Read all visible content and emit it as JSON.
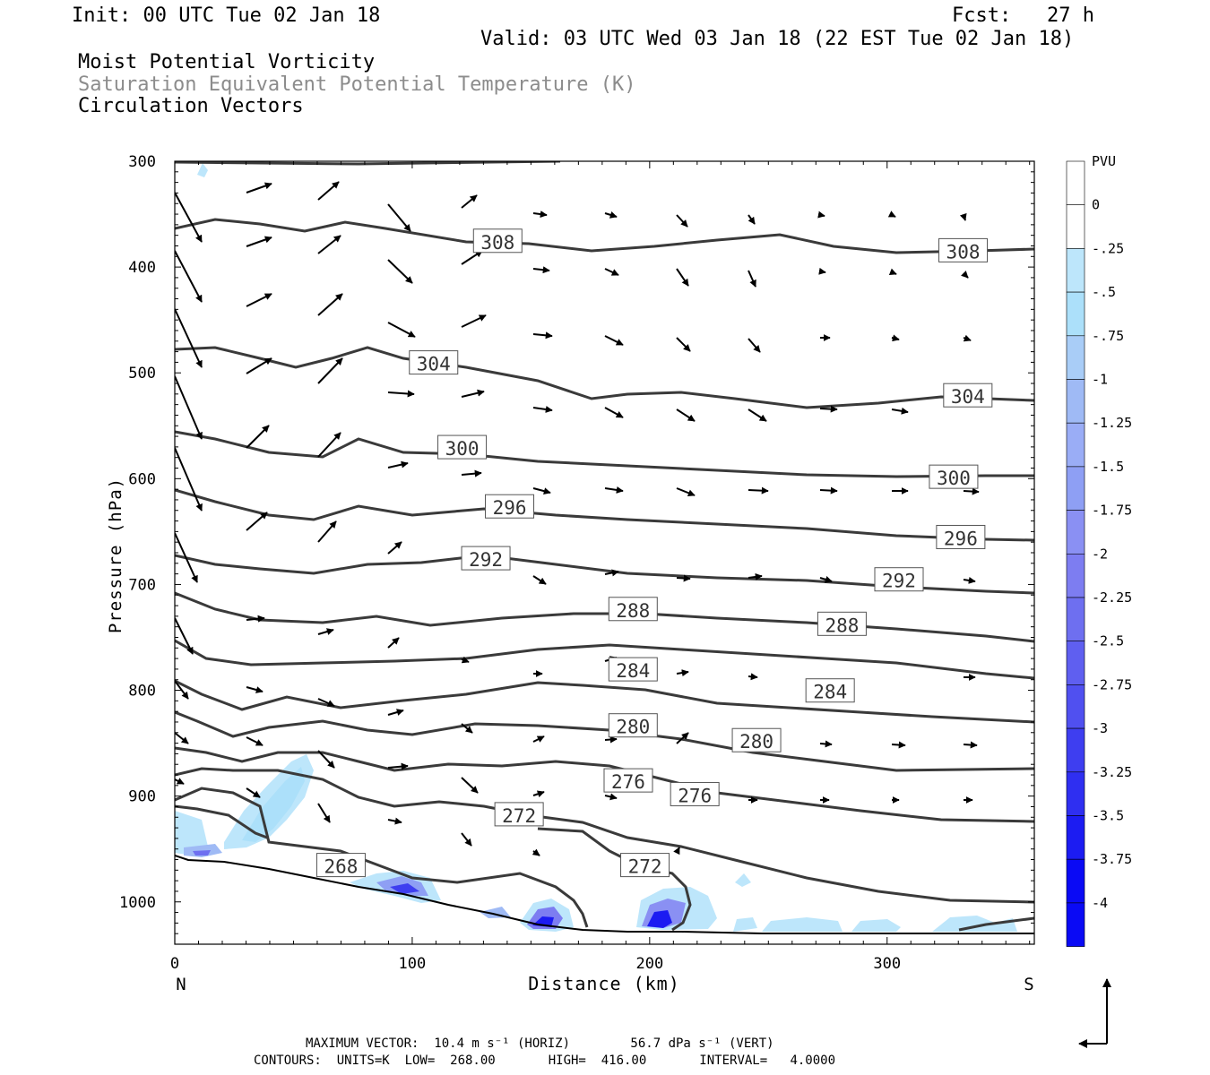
{
  "header": {
    "init": "Init: 00 UTC Tue 02 Jan 18",
    "fcst": "Fcst:   27 h",
    "valid": "Valid: 03 UTC Wed 03 Jan 18 (22 EST Tue 02 Jan 18)",
    "field1": "Moist Potential Vorticity",
    "field2": "Saturation Equivalent Potential Temperature (K)",
    "field3": "Circulation Vectors"
  },
  "footer": {
    "line1": "MAXIMUM VECTOR:  10.4 m s⁻¹ (HORIZ)        56.7 dPa s⁻¹ (VERT)",
    "line2": "CONTOURS:  UNITS=K  LOW=  268.00       HIGH=  416.00       INTERVAL=   4.0000"
  },
  "chart_data": {
    "type": "contour",
    "xlabel": "Distance (km)",
    "ylabel": "Pressure (hPa)",
    "x_ends": [
      "N",
      "S"
    ],
    "xlim": [
      0,
      362
    ],
    "ylim": [
      1040,
      300
    ],
    "x_ticks": [
      0,
      100,
      200,
      300
    ],
    "y_ticks": [
      300,
      400,
      500,
      600,
      700,
      800,
      900,
      1000
    ],
    "colorbar": {
      "unit": "PVU",
      "levels": [
        "0",
        "-.25",
        "-.5",
        "-.75",
        "-1",
        "-1.25",
        "-1.5",
        "-1.75",
        "-2",
        "-2.25",
        "-2.5",
        "-2.75",
        "-3",
        "-3.25",
        "-3.5",
        "-3.75",
        "-4"
      ],
      "colors": [
        "#ffffff",
        "#ffffff",
        "#bde6fb",
        "#ace0fa",
        "#a9cdf7",
        "#9fbaf5",
        "#9aadf6",
        "#8e9ff4",
        "#8a90f3",
        "#7d7df1",
        "#6e6ff0",
        "#5f5ff0",
        "#5050f0",
        "#3e3ef0",
        "#2f2ff1",
        "#1c1cf2",
        "#0a0af5"
      ]
    },
    "contour_labels": [
      {
        "value": "308",
        "x": 136,
        "p": 376
      },
      {
        "value": "308",
        "x": 332,
        "p": 385
      },
      {
        "value": "304",
        "x": 109,
        "p": 491
      },
      {
        "value": "304",
        "x": 334,
        "p": 522
      },
      {
        "value": "300",
        "x": 121,
        "p": 571
      },
      {
        "value": "300",
        "x": 328,
        "p": 599
      },
      {
        "value": "296",
        "x": 141,
        "p": 627
      },
      {
        "value": "296",
        "x": 331,
        "p": 656
      },
      {
        "value": "292",
        "x": 131,
        "p": 676
      },
      {
        "value": "292",
        "x": 305,
        "p": 696
      },
      {
        "value": "288",
        "x": 193,
        "p": 724
      },
      {
        "value": "288",
        "x": 281,
        "p": 738
      },
      {
        "value": "284",
        "x": 193,
        "p": 781
      },
      {
        "value": "284",
        "x": 276,
        "p": 801
      },
      {
        "value": "280",
        "x": 193,
        "p": 834
      },
      {
        "value": "280",
        "x": 245,
        "p": 848
      },
      {
        "value": "276",
        "x": 191,
        "p": 886
      },
      {
        "value": "276",
        "x": 219,
        "p": 899
      },
      {
        "value": "272",
        "x": 145,
        "p": 918
      },
      {
        "value": "272",
        "x": 198,
        "p": 966
      },
      {
        "value": "268",
        "x": 70,
        "p": 966
      }
    ]
  }
}
